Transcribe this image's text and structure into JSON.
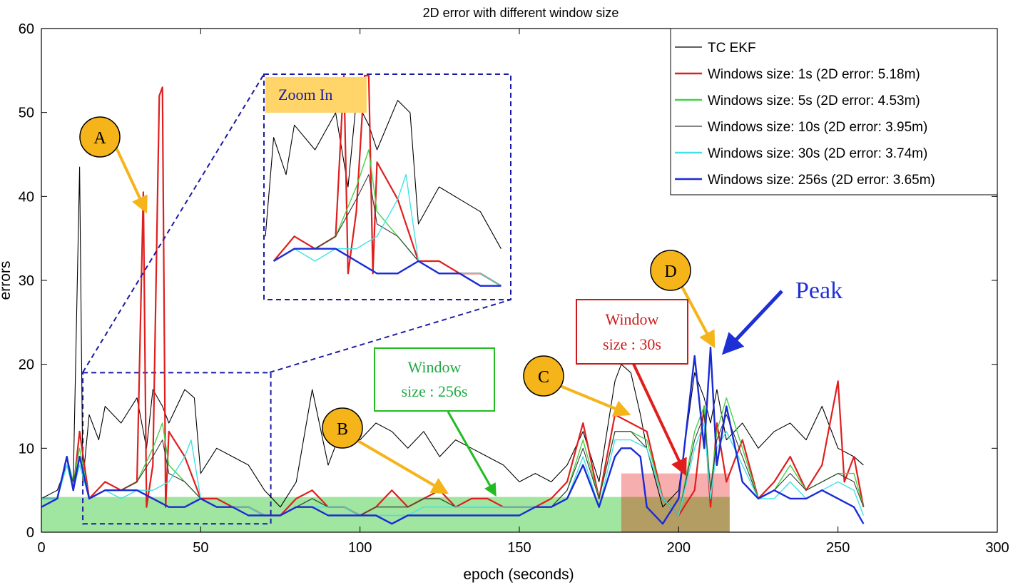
{
  "chart_data": {
    "type": "line",
    "title": "2D error with different window size",
    "xlabel": "epoch (seconds)",
    "ylabel": "errors",
    "xlim": [
      0,
      300
    ],
    "ylim": [
      0,
      60
    ],
    "xticks": [
      "0",
      "50",
      "100",
      "150",
      "200",
      "250",
      "300"
    ],
    "yticks": [
      "0",
      "10",
      "20",
      "30",
      "40",
      "50",
      "60"
    ],
    "grid": false,
    "legend_position": "top-right",
    "legend": [
      {
        "label": "TC EKF",
        "color": "#000000"
      },
      {
        "label": "Windows size: 1s (2D error: 5.18m)",
        "color": "#e01e1e"
      },
      {
        "label": "Windows size: 5s (2D error: 4.53m)",
        "color": "#44d444"
      },
      {
        "label": "Windows size: 10s (2D error: 3.95m)",
        "color": "#3a3a3a"
      },
      {
        "label": "Windows size: 30s (2D error: 3.74m)",
        "color": "#3fe3e3"
      },
      {
        "label": "Windows size: 256s (2D error: 3.65m)",
        "color": "#1a2bd6"
      }
    ],
    "series": [
      {
        "name": "TC EKF",
        "color": "#000000",
        "x": [
          0,
          5,
          8,
          10,
          12,
          13,
          15,
          18,
          20,
          25,
          30,
          33,
          35,
          38,
          40,
          45,
          48,
          50,
          55,
          60,
          65,
          70,
          75,
          80,
          85,
          90,
          95,
          100,
          105,
          110,
          115,
          120,
          125,
          130,
          135,
          140,
          145,
          150,
          155,
          160,
          165,
          170,
          175,
          180,
          182,
          185,
          188,
          190,
          195,
          200,
          205,
          208,
          210,
          212,
          215,
          220,
          225,
          230,
          235,
          240,
          245,
          250,
          255,
          258
        ],
        "y": [
          4,
          5,
          8,
          6,
          43.5,
          6,
          14,
          11,
          15,
          13,
          16,
          10,
          17,
          15,
          13,
          17,
          16,
          7,
          10,
          9,
          8,
          5,
          3,
          6,
          17,
          8,
          13,
          11,
          13,
          12,
          10,
          12,
          9,
          11,
          10,
          9,
          8,
          6,
          7,
          6,
          8,
          12,
          6,
          18,
          20,
          19,
          14,
          10,
          3,
          5,
          19,
          16,
          13,
          17,
          11,
          13,
          10,
          12,
          13,
          11,
          15,
          10,
          9,
          8
        ]
      },
      {
        "name": "Windows size: 1s (2D error: 5.18m)",
        "color": "#e01e1e",
        "x": [
          0,
          5,
          8,
          10,
          12,
          15,
          20,
          25,
          30,
          32,
          33,
          35,
          37,
          38,
          39,
          40,
          45,
          50,
          55,
          60,
          65,
          70,
          75,
          80,
          85,
          90,
          95,
          100,
          105,
          110,
          115,
          120,
          125,
          130,
          135,
          140,
          145,
          150,
          155,
          160,
          165,
          170,
          175,
          180,
          185,
          190,
          195,
          200,
          205,
          208,
          210,
          212,
          215,
          220,
          225,
          230,
          235,
          240,
          245,
          250,
          252,
          255,
          258
        ],
        "y": [
          4,
          4,
          9,
          5,
          12,
          4,
          6,
          5,
          6,
          40.5,
          3,
          8,
          52,
          53,
          3,
          12,
          9,
          4,
          4,
          3,
          3,
          2,
          2,
          4,
          5,
          3,
          3,
          2,
          3,
          5,
          3,
          4,
          5,
          3,
          4,
          4,
          3,
          3,
          3,
          4,
          6,
          13,
          4,
          14,
          13,
          12,
          4,
          2,
          5,
          15,
          3,
          13,
          6,
          11,
          4,
          6,
          9,
          5,
          8,
          18,
          6,
          9,
          3
        ]
      },
      {
        "name": "Windows size: 5s (2D error: 4.53m)",
        "color": "#44d444",
        "x": [
          0,
          5,
          8,
          10,
          12,
          15,
          20,
          25,
          30,
          35,
          38,
          40,
          45,
          50,
          55,
          60,
          65,
          70,
          75,
          80,
          85,
          90,
          95,
          100,
          105,
          110,
          115,
          120,
          125,
          130,
          135,
          140,
          145,
          150,
          155,
          160,
          165,
          170,
          175,
          180,
          185,
          190,
          195,
          200,
          205,
          208,
          210,
          212,
          215,
          220,
          225,
          230,
          235,
          240,
          245,
          250,
          255,
          258
        ],
        "y": [
          4,
          4,
          9,
          6,
          10,
          4,
          5,
          5,
          6,
          10,
          13,
          8,
          6,
          4,
          3,
          3,
          3,
          2,
          2,
          3,
          4,
          3,
          3,
          2,
          3,
          3,
          3,
          4,
          4,
          3,
          3,
          3,
          3,
          3,
          3,
          3,
          5,
          11,
          4,
          12,
          12,
          11,
          4,
          2,
          12,
          15,
          5,
          12,
          16,
          10,
          4,
          5,
          8,
          5,
          6,
          7,
          7,
          3
        ]
      },
      {
        "name": "Windows size: 10s (2D error: 3.95m)",
        "color": "#3a3a3a",
        "x": [
          0,
          5,
          8,
          10,
          12,
          15,
          20,
          25,
          30,
          35,
          38,
          40,
          45,
          50,
          55,
          60,
          65,
          70,
          75,
          80,
          85,
          90,
          95,
          100,
          105,
          110,
          115,
          120,
          125,
          130,
          135,
          140,
          145,
          150,
          155,
          160,
          165,
          170,
          175,
          180,
          185,
          190,
          195,
          200,
          205,
          208,
          210,
          212,
          215,
          220,
          225,
          230,
          235,
          240,
          245,
          250,
          255,
          258
        ],
        "y": [
          4,
          4,
          8,
          6,
          9,
          4,
          5,
          5,
          6,
          9,
          11,
          7,
          6,
          4,
          3,
          3,
          3,
          2,
          2,
          3,
          4,
          3,
          3,
          2,
          3,
          3,
          3,
          4,
          4,
          3,
          3,
          3,
          3,
          3,
          3,
          3,
          5,
          10,
          4,
          12,
          12,
          10,
          4,
          2,
          11,
          14,
          5,
          11,
          14,
          9,
          4,
          5,
          7,
          5,
          6,
          7,
          6,
          3
        ]
      },
      {
        "name": "Windows size: 30s (2D error: 3.74m)",
        "color": "#3fe3e3",
        "x": [
          0,
          5,
          8,
          10,
          12,
          15,
          20,
          25,
          30,
          35,
          40,
          45,
          47,
          50,
          55,
          60,
          65,
          70,
          75,
          80,
          85,
          90,
          95,
          100,
          105,
          110,
          115,
          120,
          125,
          130,
          135,
          140,
          145,
          150,
          155,
          160,
          165,
          170,
          175,
          180,
          185,
          190,
          195,
          200,
          205,
          208,
          210,
          212,
          215,
          220,
          225,
          230,
          235,
          240,
          245,
          250,
          255,
          258
        ],
        "y": [
          4,
          4,
          8,
          5,
          8,
          4,
          5,
          4,
          5,
          5,
          6,
          9,
          11,
          4,
          3,
          3,
          3,
          2,
          2,
          3,
          3,
          3,
          3,
          2,
          2,
          2,
          2,
          3,
          3,
          3,
          3,
          3,
          3,
          3,
          3,
          3,
          4,
          9,
          3,
          11,
          11,
          10,
          4,
          2,
          10,
          13,
          4,
          10,
          12,
          8,
          4,
          4,
          6,
          4,
          5,
          6,
          5,
          2
        ]
      },
      {
        "name": "Windows size: 256s (2D error: 3.65m)",
        "color": "#1a2bd6",
        "x": [
          0,
          5,
          8,
          10,
          12,
          15,
          20,
          25,
          30,
          35,
          40,
          45,
          50,
          55,
          60,
          65,
          70,
          75,
          80,
          85,
          90,
          95,
          100,
          105,
          110,
          115,
          120,
          125,
          130,
          135,
          140,
          145,
          150,
          155,
          160,
          165,
          170,
          175,
          180,
          182,
          185,
          188,
          190,
          195,
          200,
          205,
          208,
          210,
          212,
          215,
          220,
          225,
          230,
          235,
          240,
          245,
          250,
          255,
          258
        ],
        "y": [
          3,
          4,
          9,
          5,
          9,
          4,
          5,
          5,
          5,
          4,
          3,
          3,
          4,
          3,
          3,
          2,
          2,
          2,
          3,
          3,
          2,
          2,
          2,
          2,
          1,
          2,
          2,
          2,
          2,
          2,
          2,
          2,
          2,
          3,
          3,
          4,
          8,
          3,
          9,
          10,
          10,
          9,
          3,
          1,
          4,
          21,
          10,
          22,
          8,
          15,
          6,
          4,
          5,
          4,
          4,
          5,
          4,
          3,
          1
        ]
      }
    ],
    "shaded_regions": [
      {
        "x": [
          0,
          182
        ],
        "y": [
          0,
          4.2
        ],
        "color": "#8fe08f"
      },
      {
        "x": [
          182,
          216
        ],
        "y": [
          0,
          7
        ],
        "color": "#f5a0a0"
      },
      {
        "x": [
          182,
          216
        ],
        "y": [
          0,
          4.2
        ],
        "color": "#a89a55"
      }
    ],
    "zoom_box": {
      "x": [
        13,
        72
      ],
      "y": [
        1,
        19
      ]
    },
    "annotations": {
      "zoom_label": "Zoom In",
      "peak": "Peak",
      "markers": [
        "A",
        "B",
        "C",
        "D"
      ],
      "box_256_line1": "Window",
      "box_256_line2": "size : 256s",
      "box_30_line1": "Window",
      "box_30_line2": "size : 30s"
    }
  }
}
